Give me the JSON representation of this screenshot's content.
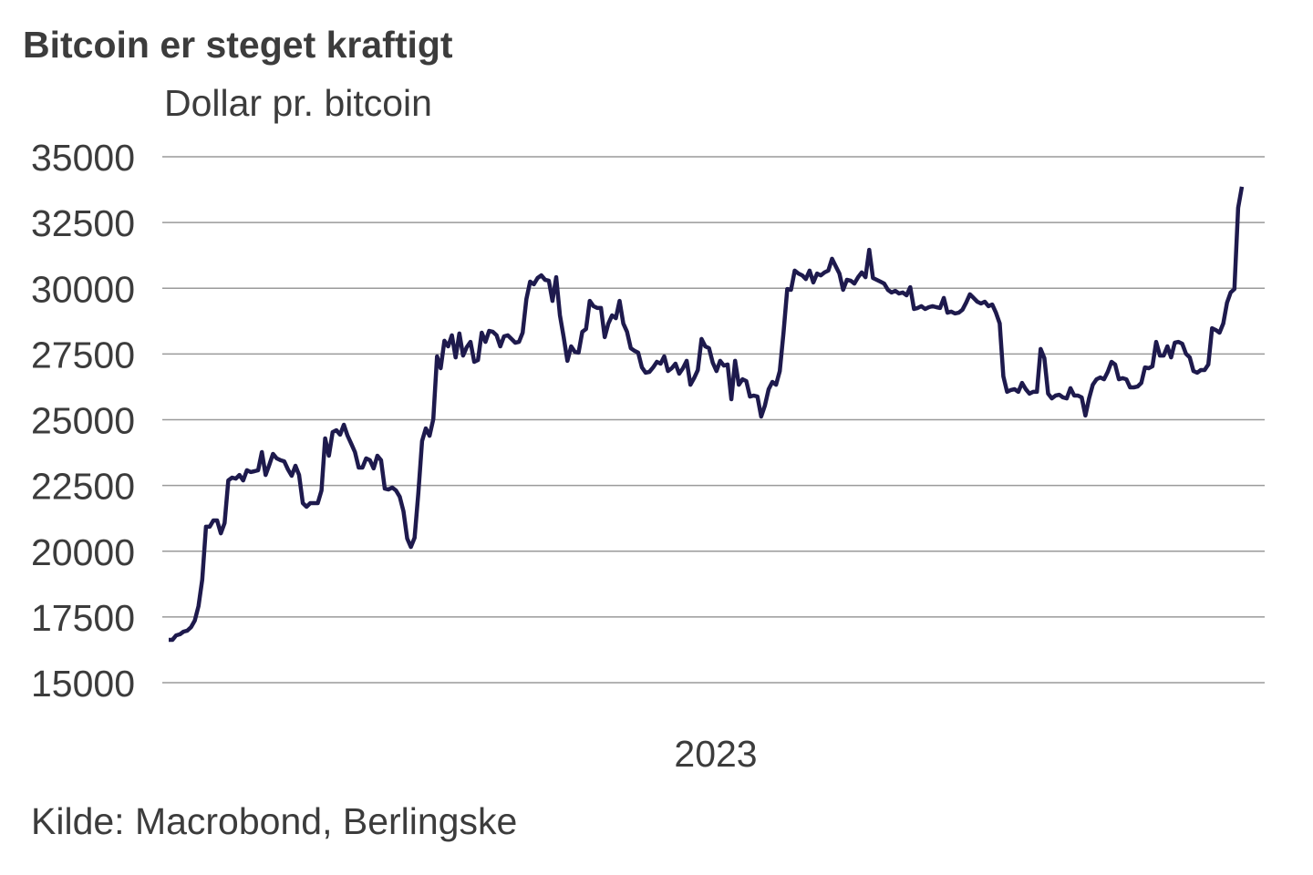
{
  "chart_data": {
    "type": "line",
    "title": "Bitcoin er steget kraftigt",
    "ylabel": "Dollar pr. bitcoin",
    "xlabel": "",
    "source": "Kilde: Macrobond, Berlingske",
    "ylim": [
      15000,
      35000
    ],
    "yticks": [
      "35000",
      "32500",
      "30000",
      "27500",
      "25000",
      "22500",
      "20000",
      "17500",
      "15000"
    ],
    "ytick_values": [
      35000,
      32500,
      30000,
      27500,
      25000,
      22500,
      20000,
      17500,
      15000
    ],
    "xticks": [
      "2023"
    ],
    "grid": true,
    "line_color": "#1e1a4d",
    "series": [
      {
        "name": "Bitcoin",
        "values": [
          16630,
          16630,
          16800,
          16840,
          16940,
          16980,
          17110,
          17360,
          17910,
          18920,
          20930,
          20930,
          21170,
          21170,
          20680,
          21070,
          22690,
          22800,
          22760,
          22900,
          22690,
          23080,
          23010,
          23040,
          23080,
          23770,
          22900,
          23280,
          23700,
          23530,
          23460,
          23420,
          23110,
          22870,
          23250,
          22900,
          21830,
          21690,
          21830,
          21830,
          21830,
          22310,
          24290,
          23630,
          24530,
          24600,
          24430,
          24810,
          24390,
          24080,
          23770,
          23180,
          23180,
          23530,
          23460,
          23150,
          23630,
          23460,
          22380,
          22350,
          22420,
          22310,
          22070,
          21520,
          20480,
          20160,
          20510,
          22210,
          24190,
          24670,
          24390,
          25020,
          27410,
          26960,
          28000,
          27790,
          28210,
          27370,
          28280,
          27440,
          27760,
          27960,
          27200,
          27270,
          28310,
          27960,
          28380,
          28340,
          28210,
          27790,
          28170,
          28210,
          28070,
          27930,
          27960,
          28310,
          29590,
          30250,
          30150,
          30390,
          30490,
          30320,
          30290,
          29520,
          30420,
          28970,
          28140,
          27240,
          27790,
          27580,
          27550,
          28340,
          28450,
          29520,
          29320,
          29250,
          29250,
          28140,
          28660,
          28970,
          28860,
          29520,
          28660,
          28340,
          27720,
          27620,
          27550,
          26990,
          26790,
          26820,
          26990,
          27200,
          27130,
          27410,
          26850,
          26960,
          27130,
          26750,
          26960,
          27240,
          26330,
          26580,
          26890,
          28070,
          27790,
          27720,
          27170,
          26850,
          27240,
          27060,
          27100,
          25780,
          27240,
          26330,
          26540,
          26470,
          25880,
          25920,
          25880,
          25120,
          25540,
          26160,
          26440,
          26330,
          26850,
          28310,
          29970,
          29940,
          30670,
          30560,
          30490,
          30350,
          30670,
          30220,
          30560,
          30490,
          30600,
          30670,
          31120,
          30840,
          30560,
          29940,
          30320,
          30290,
          30180,
          30420,
          30600,
          30420,
          31460,
          30390,
          30320,
          30250,
          30180,
          29940,
          29840,
          29900,
          29800,
          29840,
          29730,
          30040,
          29210,
          29250,
          29320,
          29210,
          29280,
          29320,
          29280,
          29250,
          29630,
          29070,
          29110,
          29040,
          29070,
          29180,
          29450,
          29770,
          29630,
          29490,
          29420,
          29490,
          29320,
          29380,
          29070,
          28660,
          26650,
          26060,
          26130,
          26160,
          26060,
          26400,
          26160,
          25990,
          26060,
          26060,
          27690,
          27340,
          25990,
          25810,
          25920,
          25950,
          25850,
          25810,
          26200,
          25920,
          25920,
          25850,
          25160,
          25810,
          26330,
          26540,
          26610,
          26540,
          26820,
          27200,
          27100,
          26540,
          26580,
          26540,
          26230,
          26230,
          26260,
          26400,
          26990,
          26960,
          27030,
          27960,
          27440,
          27440,
          27790,
          27370,
          27930,
          27960,
          27890,
          27510,
          27370,
          26850,
          26790,
          26890,
          26890,
          27100,
          28480,
          28410,
          28310,
          28660,
          29450,
          29840,
          29970,
          33060,
          33860
        ]
      }
    ]
  }
}
